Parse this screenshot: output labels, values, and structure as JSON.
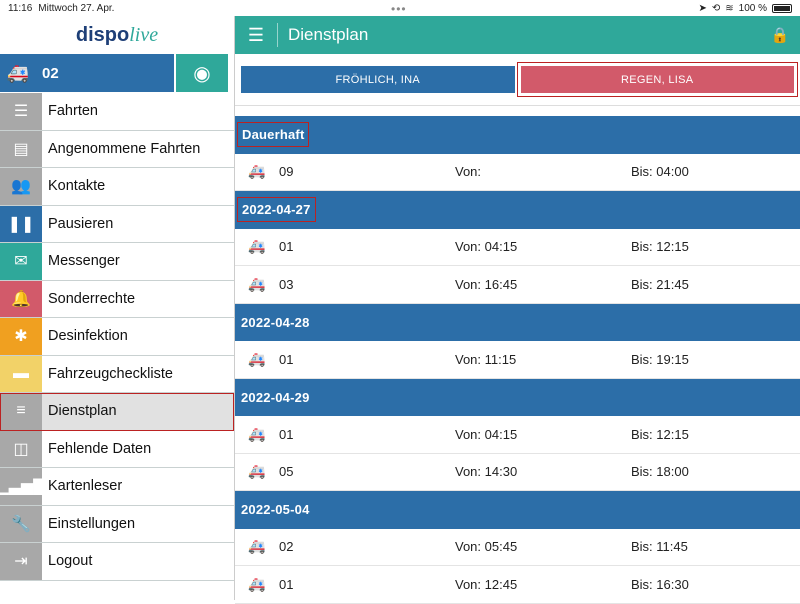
{
  "statusbar": {
    "time": "11:16",
    "date": "Mittwoch 27. Apr.",
    "battery": "100 %"
  },
  "sidebar": {
    "logo_part1": "dispo",
    "logo_part2": "live",
    "vehicle_number": "02",
    "items": [
      {
        "label": "Fahrten",
        "color": "#a8a8a8",
        "icon": "list-check-icon"
      },
      {
        "label": "Angenommene Fahrten",
        "color": "#a8a8a8",
        "icon": "id-card-icon"
      },
      {
        "label": "Kontakte",
        "color": "#a8a8a8",
        "icon": "people-icon"
      },
      {
        "label": "Pausieren",
        "color": "#2c6ea8",
        "icon": "pause-icon"
      },
      {
        "label": "Messenger",
        "color": "#2fa89a",
        "icon": "envelope-icon"
      },
      {
        "label": "Sonderrechte",
        "color": "#d25a6a",
        "icon": "bell-icon"
      },
      {
        "label": "Desinfektion",
        "color": "#f0a020",
        "icon": "bug-icon"
      },
      {
        "label": "Fahrzeugcheckliste",
        "color": "#f2d268",
        "icon": "book-icon"
      },
      {
        "label": "Dienstplan",
        "color": "#a8a8a8",
        "icon": "list-icon"
      },
      {
        "label": "Fehlende Daten",
        "color": "#a8a8a8",
        "icon": "database-icon"
      },
      {
        "label": "Kartenleser",
        "color": "#a8a8a8",
        "icon": "signal-bars-icon"
      },
      {
        "label": "Einstellungen",
        "color": "#a8a8a8",
        "icon": "wrench-icon"
      },
      {
        "label": "Logout",
        "color": "#a8a8a8",
        "icon": "logout-icon"
      }
    ]
  },
  "main": {
    "title": "Dienstplan",
    "tabs": [
      "FRÖHLICH, INA",
      "REGEN, LISA"
    ],
    "sections": [
      {
        "label": "Dauerhaft",
        "rows": [
          {
            "num": "09",
            "von": "Von:",
            "bis": "Bis: 04:00"
          }
        ]
      },
      {
        "label": "2022-04-27",
        "rows": [
          {
            "num": "01",
            "von": "Von: 04:15",
            "bis": "Bis: 12:15"
          },
          {
            "num": "03",
            "von": "Von: 16:45",
            "bis": "Bis: 21:45"
          }
        ]
      },
      {
        "label": "2022-04-28",
        "rows": [
          {
            "num": "01",
            "von": "Von: 11:15",
            "bis": "Bis: 19:15"
          }
        ]
      },
      {
        "label": "2022-04-29",
        "rows": [
          {
            "num": "01",
            "von": "Von: 04:15",
            "bis": "Bis: 12:15"
          },
          {
            "num": "05",
            "von": "Von: 14:30",
            "bis": "Bis: 18:00"
          }
        ]
      },
      {
        "label": "2022-05-04",
        "rows": [
          {
            "num": "02",
            "von": "Von: 05:45",
            "bis": "Bis: 11:45"
          },
          {
            "num": "01",
            "von": "Von: 12:45",
            "bis": "Bis: 16:30"
          }
        ]
      }
    ]
  }
}
